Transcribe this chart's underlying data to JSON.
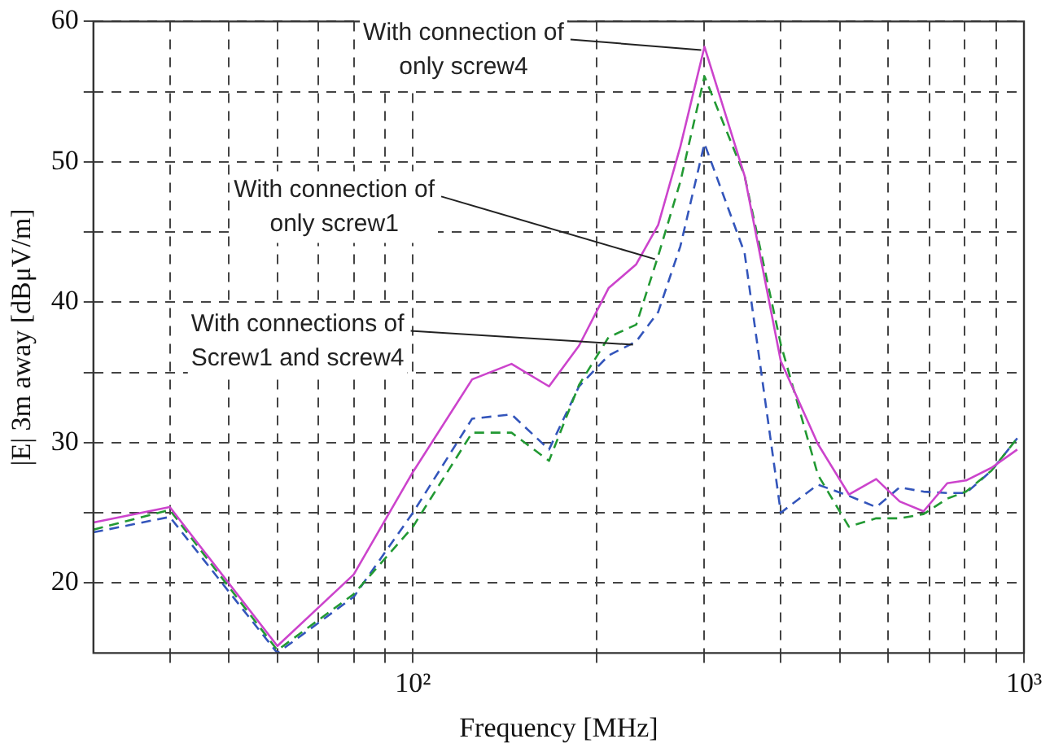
{
  "chart_data": {
    "type": "line",
    "xlabel": "Frequency [MHz]",
    "ylabel": "|E| 3m away [dBμV/m]",
    "x": [
      30,
      40,
      60,
      80,
      100,
      125,
      145,
      167,
      187,
      209,
      232,
      252,
      274,
      300,
      349,
      400,
      460,
      517,
      573,
      626,
      685,
      749,
      804,
      885,
      975
    ],
    "series": [
      {
        "color": "#cc44cc",
        "line_style": "solid",
        "values": [
          24.3,
          25.4,
          15.5,
          20.6,
          27.9,
          34.5,
          35.6,
          34.0,
          36.9,
          41.0,
          42.7,
          45.5,
          51.1,
          58.2,
          49.0,
          35.8,
          29.9,
          26.3,
          27.4,
          25.8,
          25.1,
          27.1,
          27.3,
          28.2,
          29.5
        ]
      },
      {
        "color": "#229933",
        "line_style": "dashed",
        "values": [
          23.8,
          25.2,
          15.2,
          19.2,
          24.0,
          30.7,
          30.7,
          28.7,
          34.1,
          37.5,
          38.4,
          43.3,
          48.6,
          56.1,
          49.0,
          37.0,
          27.7,
          24.0,
          24.6,
          24.6,
          24.9,
          26.0,
          26.5,
          28.0,
          30.3
        ]
      },
      {
        "color": "#3355bb",
        "line_style": "dashed",
        "values": [
          23.6,
          24.7,
          15.0,
          19.0,
          25.0,
          31.7,
          32.0,
          29.5,
          34.0,
          36.2,
          37.2,
          39.3,
          44.0,
          51.3,
          43.5,
          25.0,
          27.0,
          26.2,
          25.4,
          26.8,
          26.5,
          26.4,
          26.4,
          28.0,
          30.3
        ]
      }
    ],
    "log": "x",
    "xlim": [
      30,
      1000
    ],
    "xticks": [
      {
        "value": 40,
        "label": null
      },
      {
        "value": 50,
        "label": null
      },
      {
        "value": 60,
        "label": null
      },
      {
        "value": 70,
        "label": null
      },
      {
        "value": 80,
        "label": null
      },
      {
        "value": 90,
        "label": null
      },
      {
        "value": 100,
        "label": "10²"
      },
      {
        "value": 200,
        "label": null
      },
      {
        "value": 300,
        "label": null
      },
      {
        "value": 400,
        "label": null
      },
      {
        "value": 500,
        "label": null
      },
      {
        "value": 600,
        "label": null
      },
      {
        "value": 700,
        "label": null
      },
      {
        "value": 800,
        "label": null
      },
      {
        "value": 900,
        "label": null
      },
      {
        "value": 1000,
        "label": "10³"
      }
    ],
    "ylim": [
      15,
      60
    ],
    "yticks": [
      20,
      {
        "value": 25,
        "label": null
      },
      30,
      {
        "value": 35,
        "label": null
      },
      40,
      {
        "value": 45,
        "label": null
      },
      50,
      {
        "value": 55,
        "label": null
      },
      60
    ],
    "grid": true,
    "legend": false,
    "marker": "none",
    "annotations": [
      {
        "text": "With connection of\nonly screw4",
        "x": 300,
        "y": 58.2
      },
      {
        "text": "With connection of\nonly screw1",
        "x": 252,
        "y": 43.3
      },
      {
        "text": "With connections of\nScrew1 and screw4",
        "x": 232,
        "y": 37.2
      }
    ]
  }
}
